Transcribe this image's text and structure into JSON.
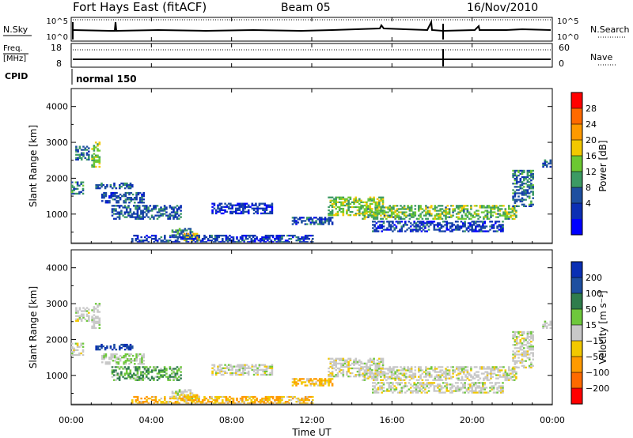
{
  "header": {
    "site": "Fort Hays East (fitACF)",
    "beam": "Beam 05",
    "date": "16/Nov/2010"
  },
  "panels": {
    "nsky": {
      "left_label": "N.Sky",
      "left_ticks": [
        "10^5",
        "10^0"
      ],
      "right_label": "N.Search",
      "right_ticks": [
        "10^5",
        "10^0"
      ]
    },
    "freq": {
      "left_label_top": "Freq.",
      "left_label_bottom": "[MHz]",
      "left_ticks": [
        "18",
        "8"
      ],
      "right_label": "Nave",
      "right_ticks": [
        "60",
        "0"
      ]
    },
    "cpid": {
      "label": "CPID",
      "program": "normal 150"
    }
  },
  "x_axis": {
    "label": "Time UT",
    "ticks": [
      "00:00",
      "04:00",
      "08:00",
      "12:00",
      "16:00",
      "20:00",
      "00:00"
    ],
    "range_hours": [
      0,
      24
    ]
  },
  "power_colorbar": {
    "label": "Power [dB]",
    "ticks": [
      "28",
      "24",
      "20",
      "16",
      "12",
      "8",
      "4"
    ],
    "colors": [
      "#ff0000",
      "#ff6a00",
      "#ff9a00",
      "#f2c800",
      "#6cc832",
      "#3c9a64",
      "#1e4fa0",
      "#0c2fb4",
      "#0000ff"
    ]
  },
  "velocity_colorbar": {
    "label": "Velocity [m s⁻¹]",
    "ticks": [
      "200",
      "100",
      "50",
      "15",
      "−15",
      "−50",
      "−100",
      "−200"
    ],
    "colors": [
      "#0a2fb4",
      "#1e4fa0",
      "#2f7d4c",
      "#6ec83c",
      "#c8c8c8",
      "#f2c800",
      "#ff9a00",
      "#ff6a00",
      "#ff0000"
    ]
  },
  "chart_data": [
    {
      "type": "heatmap",
      "title": "Power",
      "xlabel": "Time UT",
      "ylabel": "Slant Range [km]",
      "xlim": [
        0,
        24
      ],
      "ylim": [
        180,
        4500
      ],
      "yticks": [
        1000,
        2000,
        3000,
        4000
      ],
      "colorbar": {
        "label": "Power [dB]",
        "range": [
          0,
          30
        ]
      },
      "regions": [
        {
          "t": [
            0.0,
            0.6
          ],
          "r": [
            1550,
            1900
          ],
          "v": 9
        },
        {
          "t": [
            0.2,
            0.9
          ],
          "r": [
            2500,
            2900
          ],
          "v": 8
        },
        {
          "t": [
            1.0,
            1.4
          ],
          "r": [
            2300,
            3000
          ],
          "v": 14
        },
        {
          "t": [
            1.2,
            3.0
          ],
          "r": [
            1700,
            1850
          ],
          "v": 7
        },
        {
          "t": [
            1.5,
            3.6
          ],
          "r": [
            1300,
            1600
          ],
          "v": 6
        },
        {
          "t": [
            2.0,
            5.5
          ],
          "r": [
            850,
            1250
          ],
          "v": 7
        },
        {
          "t": [
            5.0,
            6.0
          ],
          "r": [
            300,
            600
          ],
          "v": 10
        },
        {
          "t": [
            5.6,
            6.4
          ],
          "r": [
            250,
            450
          ],
          "v": 18
        },
        {
          "t": [
            3.0,
            12.0
          ],
          "r": [
            200,
            400
          ],
          "v": 5
        },
        {
          "t": [
            7.0,
            10.0
          ],
          "r": [
            1000,
            1300
          ],
          "v": 4
        },
        {
          "t": [
            11.0,
            13.0
          ],
          "r": [
            700,
            900
          ],
          "v": 6
        },
        {
          "t": [
            12.8,
            15.5
          ],
          "r": [
            950,
            1450
          ],
          "v": 15
        },
        {
          "t": [
            14.5,
            22.2
          ],
          "r": [
            850,
            1250
          ],
          "v": 14
        },
        {
          "t": [
            15.0,
            21.5
          ],
          "r": [
            500,
            800
          ],
          "v": 5
        },
        {
          "t": [
            22.0,
            23.0
          ],
          "r": [
            1200,
            2200
          ],
          "v": 9
        },
        {
          "t": [
            23.5,
            24.0
          ],
          "r": [
            2300,
            2500
          ],
          "v": 6
        }
      ]
    },
    {
      "type": "heatmap",
      "title": "Velocity",
      "xlabel": "Time UT",
      "ylabel": "Slant Range [km]",
      "xlim": [
        0,
        24
      ],
      "ylim": [
        180,
        4500
      ],
      "yticks": [
        1000,
        2000,
        3000,
        4000
      ],
      "colorbar": {
        "label": "Velocity [m s⁻¹]",
        "range": [
          -250,
          250
        ]
      },
      "regions": [
        {
          "t": [
            0.0,
            0.6
          ],
          "r": [
            1550,
            1900
          ],
          "v": 0
        },
        {
          "t": [
            0.2,
            0.9
          ],
          "r": [
            2500,
            2900
          ],
          "v": 0
        },
        {
          "t": [
            1.0,
            1.4
          ],
          "r": [
            2300,
            3000
          ],
          "v": 0
        },
        {
          "t": [
            1.2,
            3.0
          ],
          "r": [
            1700,
            1850
          ],
          "v": 150
        },
        {
          "t": [
            1.5,
            3.6
          ],
          "r": [
            1300,
            1600
          ],
          "v": 10
        },
        {
          "t": [
            2.0,
            5.5
          ],
          "r": [
            850,
            1250
          ],
          "v": 30
        },
        {
          "t": [
            5.0,
            6.0
          ],
          "r": [
            300,
            600
          ],
          "v": 0
        },
        {
          "t": [
            5.6,
            6.4
          ],
          "r": [
            250,
            450
          ],
          "v": -30
        },
        {
          "t": [
            3.0,
            12.0
          ],
          "r": [
            200,
            400
          ],
          "v": -30
        },
        {
          "t": [
            7.0,
            10.0
          ],
          "r": [
            1000,
            1300
          ],
          "v": 0
        },
        {
          "t": [
            11.0,
            13.0
          ],
          "r": [
            700,
            900
          ],
          "v": -30
        },
        {
          "t": [
            12.8,
            15.5
          ],
          "r": [
            950,
            1450
          ],
          "v": 0
        },
        {
          "t": [
            14.5,
            22.2
          ],
          "r": [
            850,
            1250
          ],
          "v": 0
        },
        {
          "t": [
            15.0,
            21.5
          ],
          "r": [
            500,
            800
          ],
          "v": 0
        },
        {
          "t": [
            22.0,
            23.0
          ],
          "r": [
            1200,
            2200
          ],
          "v": 0
        },
        {
          "t": [
            23.5,
            24.0
          ],
          "r": [
            2300,
            2500
          ],
          "v": 0
        }
      ]
    }
  ]
}
